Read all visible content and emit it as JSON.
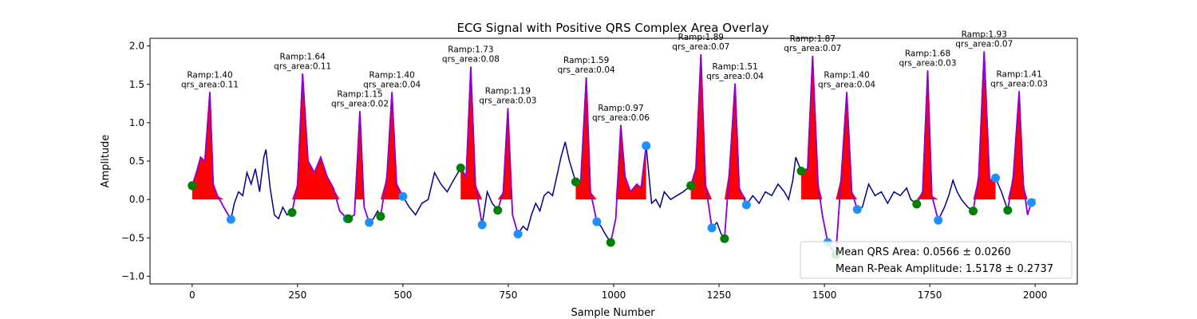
{
  "colors": {
    "ecg_line": "#00008b",
    "qrs_line": "#9400d3",
    "qrs_fill": "#ff0000",
    "onset_marker": "#008000",
    "offset_marker": "#1e90ff"
  },
  "chart_data": {
    "type": "line",
    "title": "ECG Signal with Positive QRS Complex Area Overlay",
    "xlabel": "Sample Number",
    "ylabel": "Amplitude",
    "xlim": [
      -100,
      2100
    ],
    "ylim": [
      -1.1,
      2.1
    ],
    "xticks": [
      0,
      250,
      500,
      750,
      1000,
      1250,
      1500,
      1750,
      2000
    ],
    "yticks": [
      -1.0,
      -0.5,
      0.0,
      0.5,
      1.0,
      1.5,
      2.0
    ],
    "xtick_labels": [
      "0",
      "250",
      "500",
      "750",
      "1000",
      "1250",
      "1500",
      "1750",
      "2000"
    ],
    "ytick_labels": [
      "−1.0",
      "−0.5",
      "0.0",
      "0.5",
      "1.0",
      "1.5",
      "2.0"
    ],
    "grid": false,
    "legend_placement": "lower-right",
    "legend": [
      "Mean QRS Area: 0.0566 ± 0.0260",
      "Mean R-Peak Amplitude: 1.5178 ± 0.2737"
    ],
    "beats": [
      {
        "onset_x": 0,
        "onset_y": 0.18,
        "peak_x": 42,
        "peak_y": 1.4,
        "offset_x": 92,
        "offset_y": -0.26,
        "ramp_label": "Ramp:1.40",
        "area_label": "qrs_area:0.11"
      },
      {
        "onset_x": 237,
        "onset_y": -0.17,
        "peak_x": 262,
        "peak_y": 1.64,
        "offset_x": 368,
        "offset_y": -0.25,
        "ramp_label": "Ramp:1.64",
        "area_label": "qrs_area:0.11"
      },
      {
        "onset_x": 371,
        "onset_y": -0.25,
        "peak_x": 398,
        "peak_y": 1.15,
        "offset_x": 420,
        "offset_y": -0.3,
        "ramp_label": "Ramp:1.15",
        "area_label": "qrs_area:0.02"
      },
      {
        "onset_x": 447,
        "onset_y": -0.22,
        "peak_x": 474,
        "peak_y": 1.4,
        "offset_x": 500,
        "offset_y": 0.04,
        "ramp_label": "Ramp:1.40",
        "area_label": "qrs_area:0.04"
      },
      {
        "onset_x": 637,
        "onset_y": 0.41,
        "peak_x": 661,
        "peak_y": 1.73,
        "offset_x": 688,
        "offset_y": -0.33,
        "ramp_label": "Ramp:1.73",
        "area_label": "qrs_area:0.08"
      },
      {
        "onset_x": 725,
        "onset_y": -0.14,
        "peak_x": 749,
        "peak_y": 1.19,
        "offset_x": 773,
        "offset_y": -0.45,
        "ramp_label": "Ramp:1.19",
        "area_label": "qrs_area:0.03"
      },
      {
        "onset_x": 910,
        "onset_y": 0.23,
        "peak_x": 935,
        "peak_y": 1.59,
        "offset_x": 960,
        "offset_y": -0.29,
        "ramp_label": "Ramp:1.59",
        "area_label": "qrs_area:0.04"
      },
      {
        "onset_x": 993,
        "onset_y": -0.56,
        "peak_x": 1017,
        "peak_y": 0.97,
        "offset_x": 1077,
        "offset_y": 0.7,
        "ramp_label": "Ramp:0.97",
        "area_label": "qrs_area:0.06"
      },
      {
        "onset_x": 1183,
        "onset_y": 0.18,
        "peak_x": 1207,
        "peak_y": 1.89,
        "offset_x": 1233,
        "offset_y": -0.37,
        "ramp_label": "Ramp:1.89",
        "area_label": "qrs_area:0.07"
      },
      {
        "onset_x": 1263,
        "onset_y": -0.51,
        "peak_x": 1288,
        "peak_y": 1.51,
        "offset_x": 1315,
        "offset_y": -0.07,
        "ramp_label": "Ramp:1.51",
        "area_label": "qrs_area:0.04"
      },
      {
        "onset_x": 1445,
        "onset_y": 0.37,
        "peak_x": 1472,
        "peak_y": 1.87,
        "offset_x": 1508,
        "offset_y": -0.56,
        "ramp_label": "Ramp:1.87",
        "area_label": "qrs_area:0.07"
      },
      {
        "onset_x": 1527,
        "onset_y": -0.72,
        "peak_x": 1553,
        "peak_y": 1.4,
        "offset_x": 1578,
        "offset_y": -0.13,
        "ramp_label": "Ramp:1.40",
        "area_label": "qrs_area:0.04"
      },
      {
        "onset_x": 1719,
        "onset_y": -0.06,
        "peak_x": 1745,
        "peak_y": 1.68,
        "offset_x": 1770,
        "offset_y": -0.27,
        "ramp_label": "Ramp:1.68",
        "area_label": "qrs_area:0.03"
      },
      {
        "onset_x": 1853,
        "onset_y": -0.15,
        "peak_x": 1879,
        "peak_y": 1.93,
        "offset_x": 1906,
        "offset_y": 0.28,
        "ramp_label": "Ramp:1.93",
        "area_label": "qrs_area:0.07"
      },
      {
        "onset_x": 1935,
        "onset_y": -0.14,
        "peak_x": 1962,
        "peak_y": 1.41,
        "offset_x": 1991,
        "offset_y": -0.04,
        "ramp_label": "Ramp:1.41",
        "area_label": "qrs_area:0.03"
      }
    ],
    "ecg_series": {
      "name": "",
      "points": [
        [
          0,
          0.18
        ],
        [
          10,
          0.35
        ],
        [
          20,
          0.55
        ],
        [
          30,
          0.5
        ],
        [
          42,
          1.4
        ],
        [
          50,
          0.2
        ],
        [
          60,
          0.05
        ],
        [
          75,
          -0.1
        ],
        [
          92,
          -0.26
        ],
        [
          100,
          -0.05
        ],
        [
          110,
          0.1
        ],
        [
          120,
          0.05
        ],
        [
          130,
          0.35
        ],
        [
          140,
          0.2
        ],
        [
          150,
          0.4
        ],
        [
          160,
          0.1
        ],
        [
          170,
          0.55
        ],
        [
          175,
          0.65
        ],
        [
          185,
          0.15
        ],
        [
          195,
          -0.2
        ],
        [
          205,
          -0.25
        ],
        [
          215,
          -0.1
        ],
        [
          225,
          -0.2
        ],
        [
          237,
          -0.17
        ],
        [
          250,
          0.2
        ],
        [
          262,
          1.64
        ],
        [
          275,
          0.5
        ],
        [
          290,
          0.35
        ],
        [
          305,
          0.55
        ],
        [
          320,
          0.3
        ],
        [
          335,
          0.15
        ],
        [
          350,
          -0.15
        ],
        [
          368,
          -0.25
        ],
        [
          371,
          -0.25
        ],
        [
          385,
          -0.2
        ],
        [
          398,
          1.15
        ],
        [
          408,
          -0.1
        ],
        [
          420,
          -0.3
        ],
        [
          430,
          -0.25
        ],
        [
          440,
          -0.15
        ],
        [
          447,
          -0.22
        ],
        [
          462,
          0.3
        ],
        [
          474,
          1.4
        ],
        [
          485,
          0.2
        ],
        [
          500,
          0.04
        ],
        [
          515,
          -0.1
        ],
        [
          530,
          -0.2
        ],
        [
          545,
          -0.05
        ],
        [
          560,
          0.0
        ],
        [
          575,
          0.35
        ],
        [
          590,
          0.2
        ],
        [
          605,
          0.1
        ],
        [
          620,
          0.25
        ],
        [
          637,
          0.41
        ],
        [
          650,
          0.3
        ],
        [
          661,
          1.73
        ],
        [
          672,
          0.2
        ],
        [
          688,
          -0.33
        ],
        [
          700,
          0.1
        ],
        [
          712,
          -0.05
        ],
        [
          725,
          -0.14
        ],
        [
          738,
          0.1
        ],
        [
          749,
          1.19
        ],
        [
          760,
          -0.2
        ],
        [
          773,
          -0.45
        ],
        [
          785,
          -0.35
        ],
        [
          795,
          -0.4
        ],
        [
          805,
          -0.2
        ],
        [
          815,
          -0.05
        ],
        [
          825,
          -0.15
        ],
        [
          835,
          0.05
        ],
        [
          845,
          0.1
        ],
        [
          855,
          0.05
        ],
        [
          865,
          0.3
        ],
        [
          875,
          0.55
        ],
        [
          885,
          0.75
        ],
        [
          895,
          0.5
        ],
        [
          910,
          0.23
        ],
        [
          922,
          0.25
        ],
        [
          935,
          1.59
        ],
        [
          945,
          0.1
        ],
        [
          960,
          -0.29
        ],
        [
          970,
          -0.35
        ],
        [
          980,
          -0.45
        ],
        [
          993,
          -0.56
        ],
        [
          1005,
          -0.25
        ],
        [
          1017,
          0.97
        ],
        [
          1027,
          0.3
        ],
        [
          1040,
          0.1
        ],
        [
          1055,
          0.2
        ],
        [
          1065,
          0.15
        ],
        [
          1077,
          0.7
        ],
        [
          1090,
          -0.05
        ],
        [
          1100,
          0.0
        ],
        [
          1110,
          -0.1
        ],
        [
          1120,
          0.1
        ],
        [
          1135,
          0.0
        ],
        [
          1150,
          0.05
        ],
        [
          1165,
          0.1
        ],
        [
          1183,
          0.18
        ],
        [
          1195,
          0.4
        ],
        [
          1207,
          1.89
        ],
        [
          1218,
          0.2
        ],
        [
          1233,
          -0.37
        ],
        [
          1245,
          -0.3
        ],
        [
          1255,
          -0.45
        ],
        [
          1263,
          -0.51
        ],
        [
          1275,
          0.4
        ],
        [
          1288,
          1.51
        ],
        [
          1298,
          0.15
        ],
        [
          1315,
          -0.07
        ],
        [
          1330,
          0.05
        ],
        [
          1345,
          -0.05
        ],
        [
          1360,
          0.1
        ],
        [
          1375,
          0.05
        ],
        [
          1390,
          0.2
        ],
        [
          1405,
          0.1
        ],
        [
          1415,
          0.0
        ],
        [
          1425,
          0.25
        ],
        [
          1432,
          0.55
        ],
        [
          1445,
          0.37
        ],
        [
          1460,
          0.4
        ],
        [
          1472,
          1.87
        ],
        [
          1485,
          0.2
        ],
        [
          1495,
          -0.2
        ],
        [
          1508,
          -0.56
        ],
        [
          1518,
          -0.65
        ],
        [
          1527,
          -0.72
        ],
        [
          1540,
          0.3
        ],
        [
          1553,
          1.4
        ],
        [
          1565,
          0.1
        ],
        [
          1578,
          -0.13
        ],
        [
          1590,
          -0.1
        ],
        [
          1605,
          0.2
        ],
        [
          1620,
          0.05
        ],
        [
          1635,
          0.1
        ],
        [
          1650,
          -0.05
        ],
        [
          1665,
          0.1
        ],
        [
          1680,
          0.05
        ],
        [
          1695,
          0.15
        ],
        [
          1705,
          0.0
        ],
        [
          1719,
          -0.06
        ],
        [
          1733,
          0.1
        ],
        [
          1745,
          1.68
        ],
        [
          1755,
          0.05
        ],
        [
          1770,
          -0.27
        ],
        [
          1785,
          -0.1
        ],
        [
          1795,
          0.05
        ],
        [
          1805,
          0.25
        ],
        [
          1815,
          0.1
        ],
        [
          1825,
          0.0
        ],
        [
          1840,
          -0.1
        ],
        [
          1853,
          -0.15
        ],
        [
          1866,
          0.3
        ],
        [
          1879,
          1.93
        ],
        [
          1892,
          0.25
        ],
        [
          1906,
          0.28
        ],
        [
          1920,
          0.1
        ],
        [
          1935,
          -0.14
        ],
        [
          1948,
          0.3
        ],
        [
          1962,
          1.41
        ],
        [
          1972,
          0.2
        ],
        [
          1982,
          -0.2
        ],
        [
          1991,
          -0.04
        ],
        [
          2000,
          0.0
        ]
      ]
    }
  }
}
